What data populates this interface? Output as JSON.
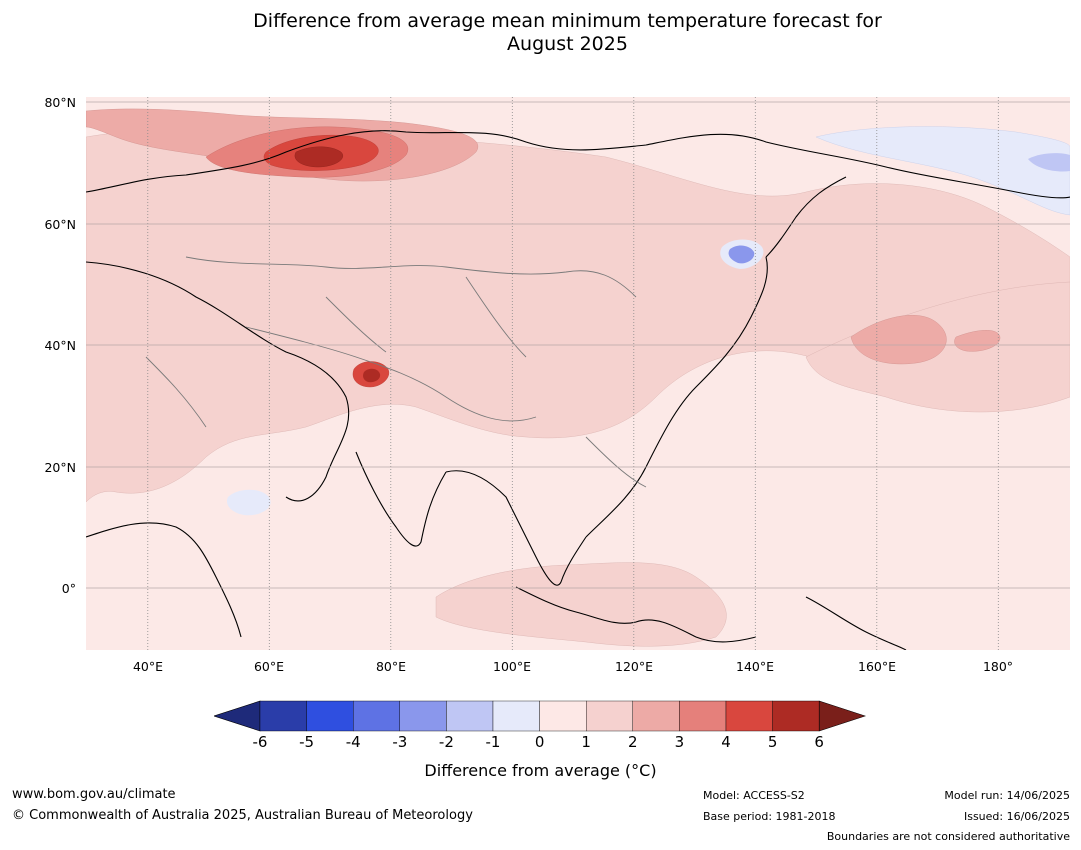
{
  "title": {
    "line1": "Difference from average mean minimum temperature forecast for",
    "line2": "August 2025"
  },
  "map": {
    "lat_labels": [
      "80°N",
      "60°N",
      "40°N",
      "20°N",
      "0°"
    ],
    "lon_labels": [
      "40°E",
      "60°E",
      "80°E",
      "100°E",
      "120°E",
      "140°E",
      "160°E",
      "180°"
    ],
    "lat_range": [
      -10,
      80
    ],
    "lon_range": [
      30,
      192
    ],
    "grid": true
  },
  "colorbar": {
    "ticks": [
      "-6",
      "-5",
      "-4",
      "-3",
      "-2",
      "-1",
      "0",
      "1",
      "2",
      "3",
      "4",
      "5",
      "6"
    ],
    "colors": [
      "#2a3da9",
      "#2f4fe0",
      "#5e72e4",
      "#8a97ec",
      "#bfc6f4",
      "#e6eafa",
      "#fde8e6",
      "#f5d1cf",
      "#edaaa6",
      "#e5807b",
      "#d9473e",
      "#ad2b24"
    ],
    "under_color": "#1e2a7a",
    "over_color": "#7a1f1a",
    "label": "Difference from average (°C)"
  },
  "footer": {
    "website": "www.bom.gov.au/climate",
    "copyright": "© Commonwealth of Australia 2025, Australian Bureau of Meteorology",
    "model": "Model: ACCESS-S2",
    "base_period": "Base period: 1981-2018",
    "model_run": "Model run: 14/06/2025",
    "issued": "Issued: 16/06/2025",
    "disclaimer": "Boundaries are not considered authoritative"
  }
}
